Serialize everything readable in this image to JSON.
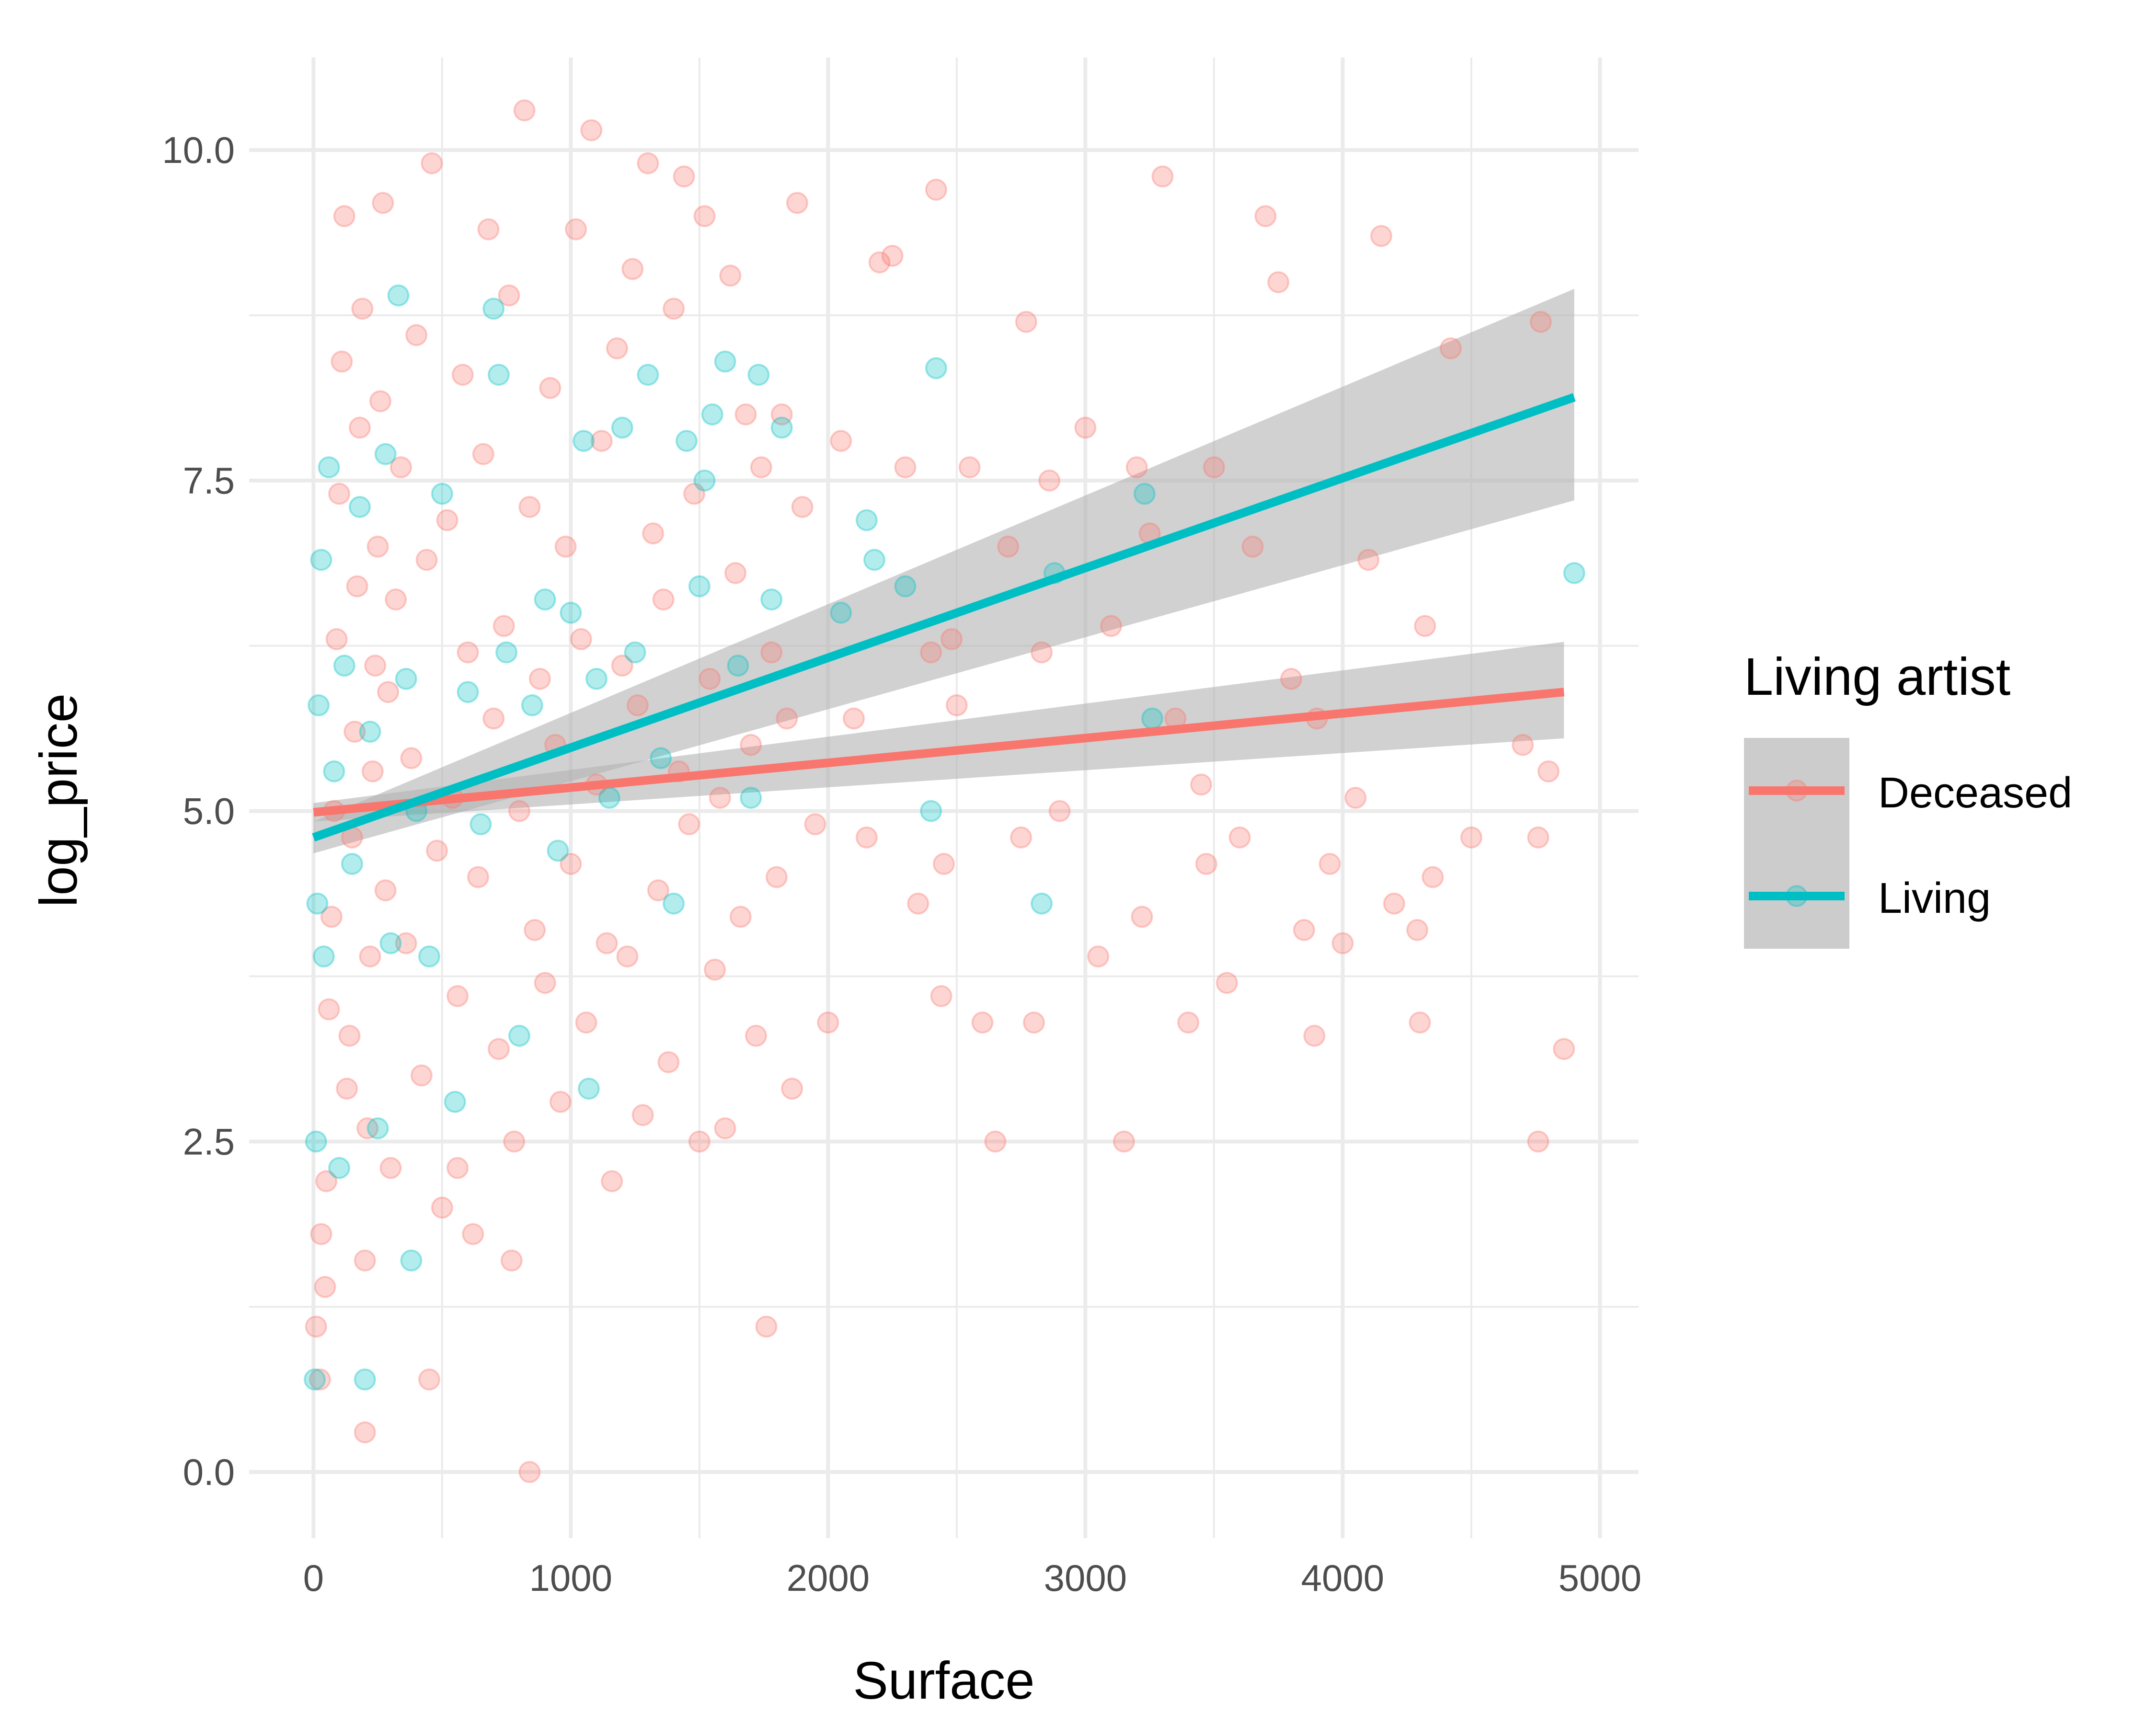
{
  "chart_data": {
    "type": "scatter",
    "xlabel": "Surface",
    "ylabel": "log_price",
    "xlim": [
      -250,
      5150
    ],
    "ylim": [
      -0.5,
      10.7
    ],
    "x_ticks": [
      0,
      1000,
      2000,
      3000,
      4000,
      5000
    ],
    "x_tick_labels": [
      "0",
      "1000",
      "2000",
      "3000",
      "4000",
      "5000"
    ],
    "y_ticks": [
      0,
      2.5,
      5,
      7.5,
      10
    ],
    "y_tick_labels": [
      "0.0",
      "2.5",
      "5.0",
      "7.5",
      "10.0"
    ],
    "grid": true,
    "legend": {
      "title": "Living artist",
      "position": "right",
      "entries": [
        "Deceased",
        "Living"
      ]
    },
    "series": [
      {
        "name": "Deceased",
        "color": "#F8766D",
        "points": [
          [
            10,
            1.1
          ],
          [
            25,
            0.7
          ],
          [
            30,
            1.8
          ],
          [
            45,
            1.4
          ],
          [
            50,
            2.2
          ],
          [
            60,
            3.5
          ],
          [
            70,
            4.2
          ],
          [
            80,
            5.0
          ],
          [
            90,
            6.3
          ],
          [
            100,
            7.4
          ],
          [
            110,
            8.4
          ],
          [
            120,
            9.5
          ],
          [
            130,
            2.9
          ],
          [
            140,
            3.3
          ],
          [
            150,
            4.8
          ],
          [
            160,
            5.6
          ],
          [
            170,
            6.7
          ],
          [
            180,
            7.9
          ],
          [
            190,
            8.8
          ],
          [
            200,
            1.6
          ],
          [
            210,
            2.6
          ],
          [
            220,
            3.9
          ],
          [
            230,
            5.3
          ],
          [
            240,
            6.1
          ],
          [
            250,
            7.0
          ],
          [
            260,
            8.1
          ],
          [
            270,
            9.6
          ],
          [
            280,
            4.4
          ],
          [
            290,
            5.9
          ],
          [
            300,
            2.3
          ],
          [
            320,
            6.6
          ],
          [
            340,
            7.6
          ],
          [
            360,
            4.0
          ],
          [
            380,
            5.4
          ],
          [
            400,
            8.6
          ],
          [
            420,
            3.0
          ],
          [
            440,
            6.9
          ],
          [
            460,
            9.9
          ],
          [
            480,
            4.7
          ],
          [
            500,
            2.0
          ],
          [
            520,
            7.2
          ],
          [
            540,
            5.1
          ],
          [
            560,
            3.6
          ],
          [
            580,
            8.3
          ],
          [
            600,
            6.2
          ],
          [
            620,
            1.8
          ],
          [
            640,
            4.5
          ],
          [
            660,
            7.7
          ],
          [
            680,
            9.4
          ],
          [
            700,
            5.7
          ],
          [
            720,
            3.2
          ],
          [
            740,
            6.4
          ],
          [
            760,
            8.9
          ],
          [
            780,
            2.5
          ],
          [
            800,
            5.0
          ],
          [
            820,
            10.3
          ],
          [
            840,
            7.3
          ],
          [
            860,
            4.1
          ],
          [
            880,
            6.0
          ],
          [
            900,
            3.7
          ],
          [
            920,
            8.2
          ],
          [
            940,
            5.5
          ],
          [
            960,
            2.8
          ],
          [
            980,
            7.0
          ],
          [
            1000,
            4.6
          ],
          [
            1020,
            9.4
          ],
          [
            1040,
            6.3
          ],
          [
            1060,
            3.4
          ],
          [
            1080,
            10.15
          ],
          [
            1100,
            5.2
          ],
          [
            1120,
            7.8
          ],
          [
            1140,
            4.0
          ],
          [
            1160,
            2.2
          ],
          [
            1180,
            8.5
          ],
          [
            1200,
            6.1
          ],
          [
            1220,
            3.9
          ],
          [
            1240,
            9.1
          ],
          [
            1260,
            5.8
          ],
          [
            1280,
            2.7
          ],
          [
            1300,
            9.9
          ],
          [
            1320,
            7.1
          ],
          [
            1340,
            4.4
          ],
          [
            1360,
            6.6
          ],
          [
            1380,
            3.1
          ],
          [
            1400,
            8.8
          ],
          [
            1420,
            5.3
          ],
          [
            1440,
            9.8
          ],
          [
            1460,
            4.9
          ],
          [
            1480,
            7.4
          ],
          [
            1500,
            2.5
          ],
          [
            1520,
            9.5
          ],
          [
            1540,
            6.0
          ],
          [
            1560,
            3.8
          ],
          [
            1580,
            5.1
          ],
          [
            1600,
            2.6
          ],
          [
            1620,
            9.05
          ],
          [
            1640,
            6.8
          ],
          [
            1660,
            4.2
          ],
          [
            1680,
            8.0
          ],
          [
            1700,
            5.5
          ],
          [
            1720,
            3.3
          ],
          [
            1740,
            7.6
          ],
          [
            1760,
            1.1
          ],
          [
            1780,
            6.2
          ],
          [
            1800,
            4.5
          ],
          [
            1820,
            8.0
          ],
          [
            1840,
            5.7
          ],
          [
            1860,
            2.9
          ],
          [
            1880,
            9.6
          ],
          [
            1900,
            7.3
          ],
          [
            1950,
            4.9
          ],
          [
            2000,
            3.4
          ],
          [
            2050,
            7.8
          ],
          [
            2100,
            5.7
          ],
          [
            2150,
            4.8
          ],
          [
            2200,
            9.15
          ],
          [
            2250,
            9.2
          ],
          [
            2300,
            7.6
          ],
          [
            2350,
            4.3
          ],
          [
            2400,
            6.2
          ],
          [
            2420,
            9.7
          ],
          [
            2440,
            3.6
          ],
          [
            2450,
            4.6
          ],
          [
            2480,
            6.3
          ],
          [
            2500,
            5.8
          ],
          [
            2550,
            7.6
          ],
          [
            2600,
            3.4
          ],
          [
            2650,
            2.5
          ],
          [
            2700,
            7.0
          ],
          [
            2750,
            4.8
          ],
          [
            2770,
            8.7
          ],
          [
            2800,
            3.4
          ],
          [
            2830,
            6.2
          ],
          [
            2860,
            7.5
          ],
          [
            2900,
            5.0
          ],
          [
            3000,
            7.9
          ],
          [
            3050,
            3.9
          ],
          [
            3100,
            6.4
          ],
          [
            3150,
            2.5
          ],
          [
            3200,
            7.6
          ],
          [
            3220,
            4.2
          ],
          [
            3250,
            7.1
          ],
          [
            3300,
            9.8
          ],
          [
            3350,
            5.7
          ],
          [
            3400,
            3.4
          ],
          [
            3450,
            5.2
          ],
          [
            3470,
            4.6
          ],
          [
            3500,
            7.6
          ],
          [
            3550,
            3.7
          ],
          [
            3600,
            4.8
          ],
          [
            3650,
            7.0
          ],
          [
            3700,
            9.5
          ],
          [
            3750,
            9.0
          ],
          [
            3800,
            6.0
          ],
          [
            3850,
            4.1
          ],
          [
            3890,
            3.3
          ],
          [
            3900,
            5.7
          ],
          [
            3950,
            4.6
          ],
          [
            4000,
            4.0
          ],
          [
            4050,
            5.1
          ],
          [
            4100,
            6.9
          ],
          [
            4150,
            9.35
          ],
          [
            4200,
            4.3
          ],
          [
            4290,
            4.1
          ],
          [
            4300,
            3.4
          ],
          [
            4320,
            6.4
          ],
          [
            4350,
            4.5
          ],
          [
            4420,
            8.5
          ],
          [
            4500,
            4.8
          ],
          [
            4700,
            5.5
          ],
          [
            4760,
            2.5
          ],
          [
            4770,
            8.7
          ],
          [
            4800,
            5.3
          ],
          [
            4860,
            3.2
          ],
          [
            4760,
            4.8
          ],
          [
            560,
            2.3
          ],
          [
            770,
            1.6
          ],
          [
            200,
            0.3
          ],
          [
            840,
            0.0
          ],
          [
            450,
            0.7
          ]
        ]
      },
      {
        "name": "Living",
        "color": "#00BFC4",
        "points": [
          [
            5,
            0.7
          ],
          [
            10,
            2.5
          ],
          [
            15,
            4.3
          ],
          [
            20,
            5.8
          ],
          [
            30,
            6.9
          ],
          [
            40,
            3.9
          ],
          [
            60,
            7.6
          ],
          [
            80,
            5.3
          ],
          [
            100,
            2.3
          ],
          [
            120,
            6.1
          ],
          [
            150,
            4.6
          ],
          [
            180,
            7.3
          ],
          [
            200,
            0.7
          ],
          [
            220,
            5.6
          ],
          [
            250,
            2.6
          ],
          [
            280,
            7.7
          ],
          [
            300,
            4.0
          ],
          [
            330,
            8.9
          ],
          [
            360,
            6.0
          ],
          [
            380,
            1.6
          ],
          [
            400,
            5.0
          ],
          [
            450,
            3.9
          ],
          [
            500,
            7.4
          ],
          [
            550,
            2.8
          ],
          [
            600,
            5.9
          ],
          [
            650,
            4.9
          ],
          [
            700,
            8.8
          ],
          [
            720,
            8.3
          ],
          [
            750,
            6.2
          ],
          [
            800,
            3.3
          ],
          [
            850,
            5.8
          ],
          [
            900,
            6.6
          ],
          [
            950,
            4.7
          ],
          [
            1000,
            6.5
          ],
          [
            1050,
            7.8
          ],
          [
            1070,
            2.9
          ],
          [
            1100,
            6.0
          ],
          [
            1150,
            5.1
          ],
          [
            1200,
            7.9
          ],
          [
            1250,
            6.2
          ],
          [
            1300,
            8.3
          ],
          [
            1350,
            5.4
          ],
          [
            1400,
            4.3
          ],
          [
            1450,
            7.8
          ],
          [
            1500,
            6.7
          ],
          [
            1520,
            7.5
          ],
          [
            1550,
            8.0
          ],
          [
            1600,
            8.4
          ],
          [
            1650,
            6.1
          ],
          [
            1700,
            5.1
          ],
          [
            1730,
            8.3
          ],
          [
            1780,
            6.6
          ],
          [
            1820,
            7.9
          ],
          [
            2050,
            6.5
          ],
          [
            2150,
            7.2
          ],
          [
            2180,
            6.9
          ],
          [
            2300,
            6.7
          ],
          [
            2400,
            5.0
          ],
          [
            2420,
            8.35
          ],
          [
            2830,
            4.3
          ],
          [
            2880,
            6.8
          ],
          [
            3230,
            7.4
          ],
          [
            3260,
            5.7
          ],
          [
            4900,
            6.8
          ]
        ]
      }
    ],
    "fits": [
      {
        "name": "Deceased",
        "color": "#F8766D",
        "x": [
          0,
          4860
        ],
        "y": [
          4.99,
          5.9
        ],
        "ci_lower": [
          4.92,
          5.55
        ],
        "ci_upper": [
          5.06,
          6.28
        ]
      },
      {
        "name": "Living",
        "color": "#00BFC4",
        "x": [
          0,
          4900
        ],
        "y": [
          4.8,
          8.13
        ],
        "ci_lower": [
          4.68,
          7.35
        ],
        "ci_upper": [
          4.92,
          8.95
        ]
      }
    ],
    "ci_color": "#B3B3B3",
    "grid_color": "#EBEBEB"
  }
}
